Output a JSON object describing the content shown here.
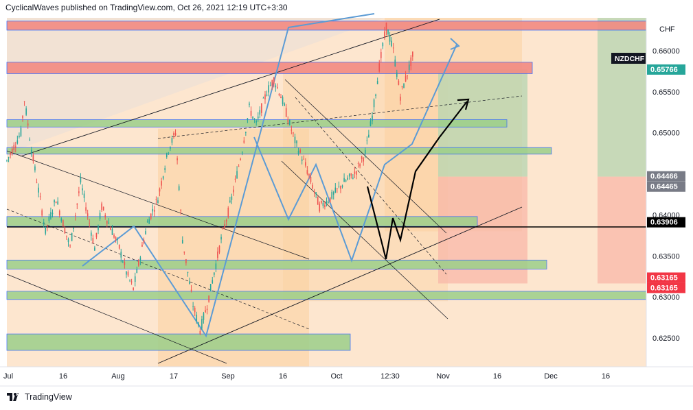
{
  "header": {
    "publish_line": "CyclicalWaves published on TradingView.com, Oct 26, 2021 12:19 UTC+3:30"
  },
  "footer": {
    "brand": "TradingView"
  },
  "chart_data": {
    "type": "candlestick",
    "symbol": "NZDCHF",
    "currency": "CHF",
    "ylim": [
      0.6215,
      0.664
    ],
    "y_ticks": [
      0.625,
      0.63,
      0.635,
      0.64,
      0.645,
      0.65,
      0.655,
      0.66
    ],
    "y_tick_labels": [
      "0.62500",
      "0.63000",
      "0.63500",
      "0.64000",
      "0.64500",
      "0.65000",
      "0.65500",
      "0.66000"
    ],
    "x_tick_labels": [
      "Jul",
      "16",
      "Aug",
      "17",
      "Sep",
      "16",
      "Oct",
      "12:30",
      "Nov",
      "16",
      "Dec",
      "16"
    ],
    "price_labels": [
      {
        "text": "0.65766",
        "value": 0.65766,
        "color": "#26a69a"
      },
      {
        "text": "0.64466",
        "value": 0.64466,
        "color": "#787b86"
      },
      {
        "text": "0.64465",
        "value": 0.64465,
        "color": "#787b86"
      },
      {
        "text": "0.63906",
        "value": 0.63906,
        "color": "#000000"
      },
      {
        "text": "0.63165",
        "value": 0.63165,
        "color": "#f23645"
      },
      {
        "text": "0.63165",
        "value": 0.63165,
        "color": "#f23645"
      }
    ],
    "horizontal_line": 0.63906,
    "zones": {
      "resistance": [
        [
          0.6625,
          0.6636
        ],
        [
          0.6572,
          0.6586
        ]
      ],
      "support": [
        [
          0.6507,
          0.6516
        ],
        [
          0.6474,
          0.6482
        ],
        [
          0.6386,
          0.6398
        ],
        [
          0.6334,
          0.6345
        ],
        [
          0.6297,
          0.6307
        ],
        [
          0.6235,
          0.6255
        ]
      ]
    },
    "ohlc_points": [
      [
        "2021-07-01",
        0.6466
      ],
      [
        "2021-07-05",
        0.65
      ],
      [
        "2021-07-06",
        0.654
      ],
      [
        "2021-07-08",
        0.648
      ],
      [
        "2021-07-12",
        0.638
      ],
      [
        "2021-07-15",
        0.642
      ],
      [
        "2021-07-19",
        0.636
      ],
      [
        "2021-07-22",
        0.644
      ],
      [
        "2021-07-26",
        0.636
      ],
      [
        "2021-07-28",
        0.641
      ],
      [
        "2021-08-02",
        0.636
      ],
      [
        "2021-08-04",
        0.633
      ],
      [
        "2021-08-06",
        0.631
      ],
      [
        "2021-08-10",
        0.639
      ],
      [
        "2021-08-13",
        0.642
      ],
      [
        "2021-08-16",
        0.648
      ],
      [
        "2021-08-18",
        0.65
      ],
      [
        "2021-08-20",
        0.637
      ],
      [
        "2021-08-23",
        0.629
      ],
      [
        "2021-08-25",
        0.626
      ],
      [
        "2021-08-27",
        0.629
      ],
      [
        "2021-08-31",
        0.637
      ],
      [
        "2021-09-03",
        0.642
      ],
      [
        "2021-09-06",
        0.648
      ],
      [
        "2021-09-08",
        0.653
      ],
      [
        "2021-09-10",
        0.651
      ],
      [
        "2021-09-13",
        0.655
      ],
      [
        "2021-09-15",
        0.6565
      ],
      [
        "2021-09-17",
        0.6545
      ],
      [
        "2021-09-21",
        0.649
      ],
      [
        "2021-09-24",
        0.646
      ],
      [
        "2021-09-28",
        0.641
      ],
      [
        "2021-10-01",
        0.642
      ],
      [
        "2021-10-05",
        0.644
      ],
      [
        "2021-10-08",
        0.645
      ],
      [
        "2021-10-11",
        0.6475
      ],
      [
        "2021-10-13",
        0.652
      ],
      [
        "2021-10-15",
        0.658
      ],
      [
        "2021-10-17",
        0.663
      ],
      [
        "2021-10-19",
        0.66
      ],
      [
        "2021-10-21",
        0.6545
      ],
      [
        "2021-10-25",
        0.66
      ]
    ]
  }
}
